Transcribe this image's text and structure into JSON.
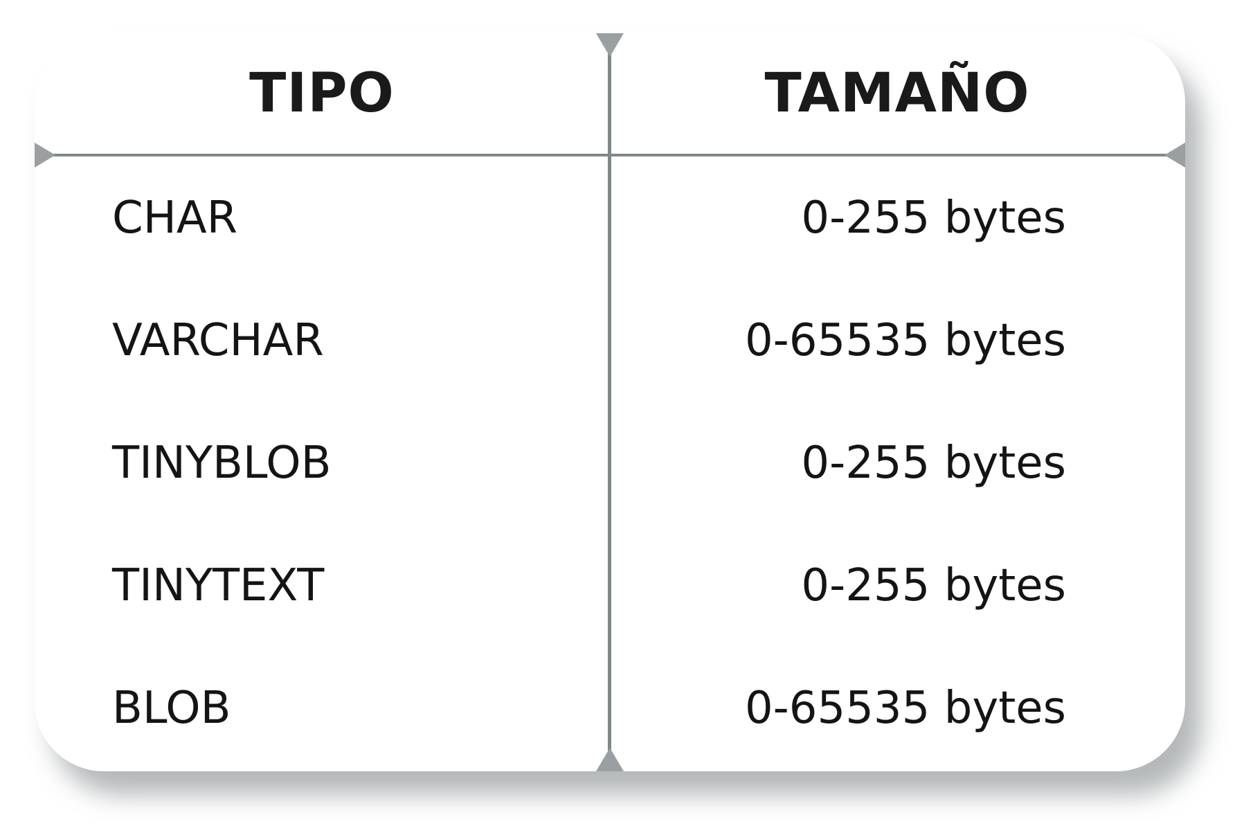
{
  "table": {
    "headers": {
      "type": "TIPO",
      "size": "TAMAÑO"
    },
    "rows": [
      {
        "type": "CHAR",
        "size": "0-255 bytes"
      },
      {
        "type": "VARCHAR",
        "size": "0-65535 bytes"
      },
      {
        "type": "TINYBLOB",
        "size": "0-255 bytes"
      },
      {
        "type": "TINYTEXT",
        "size": "0-255 bytes"
      },
      {
        "type": "BLOB",
        "size": "0-65535 bytes"
      }
    ]
  },
  "colors": {
    "text": "#141414",
    "divider": "#7f8789",
    "shadow": "#9aa0a2",
    "card": "#ffffff"
  }
}
